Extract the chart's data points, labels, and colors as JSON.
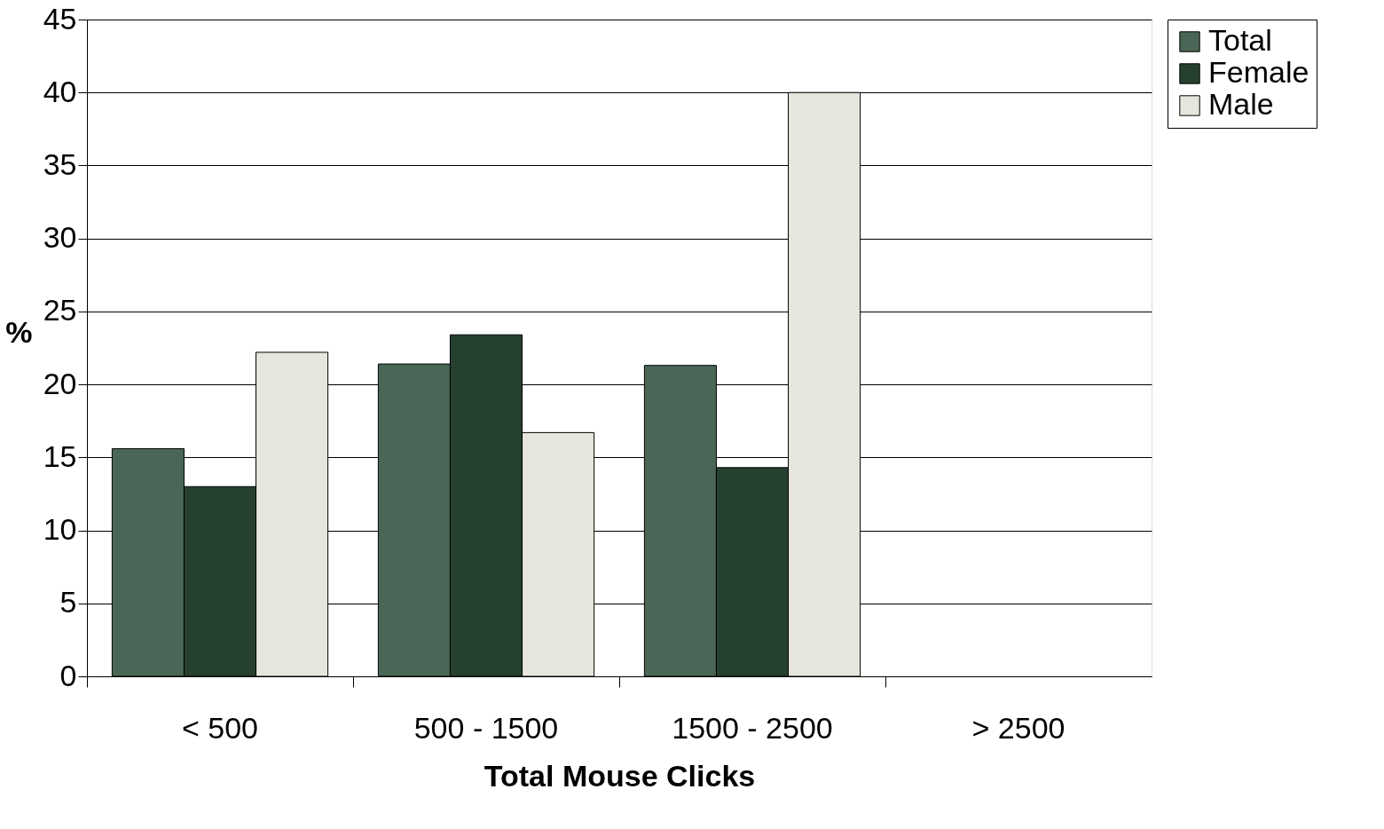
{
  "chart_data": {
    "type": "bar",
    "xlabel": "Total Mouse Clicks",
    "ylabel": "%",
    "categories": [
      "< 500",
      "500 - 1500",
      "1500 - 2500",
      "> 2500"
    ],
    "series": [
      {
        "name": "Total",
        "color": "#4a6656",
        "values": [
          15.6,
          21.4,
          21.3,
          null
        ]
      },
      {
        "name": "Female",
        "color": "#26402f",
        "values": [
          13.0,
          23.4,
          14.3,
          null
        ]
      },
      {
        "name": "Male",
        "color": "#e6e6dc",
        "values": [
          22.2,
          16.7,
          40.0,
          null
        ]
      }
    ],
    "ylim": [
      0,
      45
    ],
    "yticks": [
      0,
      5,
      10,
      15,
      20,
      25,
      30,
      35,
      40,
      45
    ],
    "grid": "y",
    "legend": "top right"
  }
}
